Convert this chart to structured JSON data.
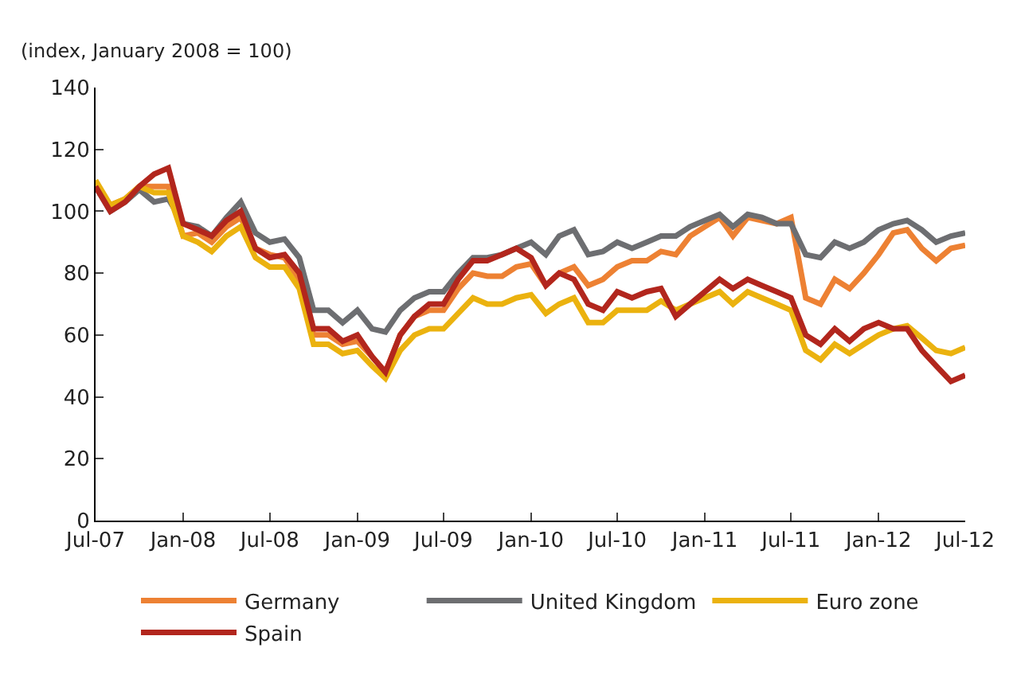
{
  "chart_data": {
    "type": "line",
    "ylabel": "(index, January 2008 = 100)",
    "x": [
      "2007-07",
      "2007-08",
      "2007-09",
      "2007-10",
      "2007-11",
      "2007-12",
      "2008-01",
      "2008-02",
      "2008-03",
      "2008-04",
      "2008-05",
      "2008-06",
      "2008-07",
      "2008-08",
      "2008-09",
      "2008-10",
      "2008-11",
      "2008-12",
      "2009-01",
      "2009-02",
      "2009-03",
      "2009-04",
      "2009-05",
      "2009-06",
      "2009-07",
      "2009-08",
      "2009-09",
      "2009-10",
      "2009-11",
      "2009-12",
      "2010-01",
      "2010-02",
      "2010-03",
      "2010-04",
      "2010-05",
      "2010-06",
      "2010-07",
      "2010-08",
      "2010-09",
      "2010-10",
      "2010-11",
      "2010-12",
      "2011-01",
      "2011-02",
      "2011-03",
      "2011-04",
      "2011-05",
      "2011-06",
      "2011-07",
      "2011-08",
      "2011-09",
      "2011-10",
      "2011-11",
      "2011-12",
      "2012-01",
      "2012-02",
      "2012-03",
      "2012-04",
      "2012-05",
      "2012-06",
      "2012-07"
    ],
    "series": [
      {
        "name": "Germany",
        "color": "#ed8133",
        "values": [
          108,
          102,
          104,
          108,
          108,
          108,
          92,
          93,
          90,
          95,
          98,
          88,
          86,
          85,
          78,
          60,
          60,
          57,
          58,
          53,
          48,
          60,
          66,
          68,
          68,
          75,
          80,
          79,
          79,
          82,
          83,
          76,
          80,
          82,
          76,
          78,
          82,
          84,
          84,
          87,
          86,
          92,
          95,
          98,
          92,
          98,
          97,
          96,
          98,
          72,
          70,
          78,
          75,
          80,
          86,
          93,
          94,
          88,
          84,
          88,
          89
        ]
      },
      {
        "name": "United Kingdom",
        "color": "#6d6e71",
        "values": [
          108,
          100,
          103,
          107,
          103,
          104,
          96,
          95,
          92,
          98,
          103,
          93,
          90,
          91,
          85,
          68,
          68,
          64,
          68,
          62,
          61,
          68,
          72,
          74,
          74,
          80,
          85,
          85,
          86,
          88,
          90,
          86,
          92,
          94,
          86,
          87,
          90,
          88,
          90,
          92,
          92,
          95,
          97,
          99,
          95,
          99,
          98,
          96,
          96,
          86,
          85,
          90,
          88,
          90,
          94,
          96,
          97,
          94,
          90,
          92,
          93
        ]
      },
      {
        "name": "Euro zone",
        "color": "#ebb20f",
        "values": [
          110,
          102,
          104,
          108,
          106,
          106,
          92,
          90,
          87,
          92,
          95,
          85,
          82,
          82,
          75,
          57,
          57,
          54,
          55,
          50,
          46,
          55,
          60,
          62,
          62,
          67,
          72,
          70,
          70,
          72,
          73,
          67,
          70,
          72,
          64,
          64,
          68,
          68,
          68,
          71,
          68,
          70,
          72,
          74,
          70,
          74,
          72,
          70,
          68,
          55,
          52,
          57,
          54,
          57,
          60,
          62,
          63,
          59,
          55,
          54,
          56
        ]
      },
      {
        "name": "Spain",
        "color": "#b2261d",
        "values": [
          108,
          100,
          103,
          108,
          112,
          114,
          96,
          94,
          92,
          97,
          100,
          88,
          85,
          86,
          80,
          62,
          62,
          58,
          60,
          53,
          48,
          60,
          66,
          70,
          70,
          78,
          84,
          84,
          86,
          88,
          85,
          76,
          80,
          78,
          70,
          68,
          74,
          72,
          74,
          75,
          66,
          70,
          74,
          78,
          75,
          78,
          76,
          74,
          72,
          60,
          57,
          62,
          58,
          62,
          64,
          62,
          62,
          55,
          50,
          45,
          47
        ]
      }
    ],
    "xlim": [
      "2007-07-01",
      "2012-07-01"
    ],
    "xticks": [
      {
        "value": "2007-07-01",
        "label": "Jul-07"
      },
      {
        "value": "2008-01-01",
        "label": "Jan-08"
      },
      {
        "value": "2008-07-01",
        "label": "Jul-08"
      },
      {
        "value": "2009-01-01",
        "label": "Jan-09"
      },
      {
        "value": "2009-07-01",
        "label": "Jul-09"
      },
      {
        "value": "2010-01-01",
        "label": "Jan-10"
      },
      {
        "value": "2010-07-01",
        "label": "Jul-10"
      },
      {
        "value": "2011-01-01",
        "label": "Jan-11"
      },
      {
        "value": "2011-07-01",
        "label": "Jul-11"
      },
      {
        "value": "2012-01-01",
        "label": "Jan-12"
      },
      {
        "value": "2012-07-01",
        "label": "Jul-12"
      }
    ],
    "ylim": [
      0,
      140
    ],
    "yticks": [
      0,
      20,
      40,
      60,
      80,
      100,
      120,
      140
    ],
    "legend": "bottom",
    "line_style": "solid",
    "marker": "none"
  }
}
